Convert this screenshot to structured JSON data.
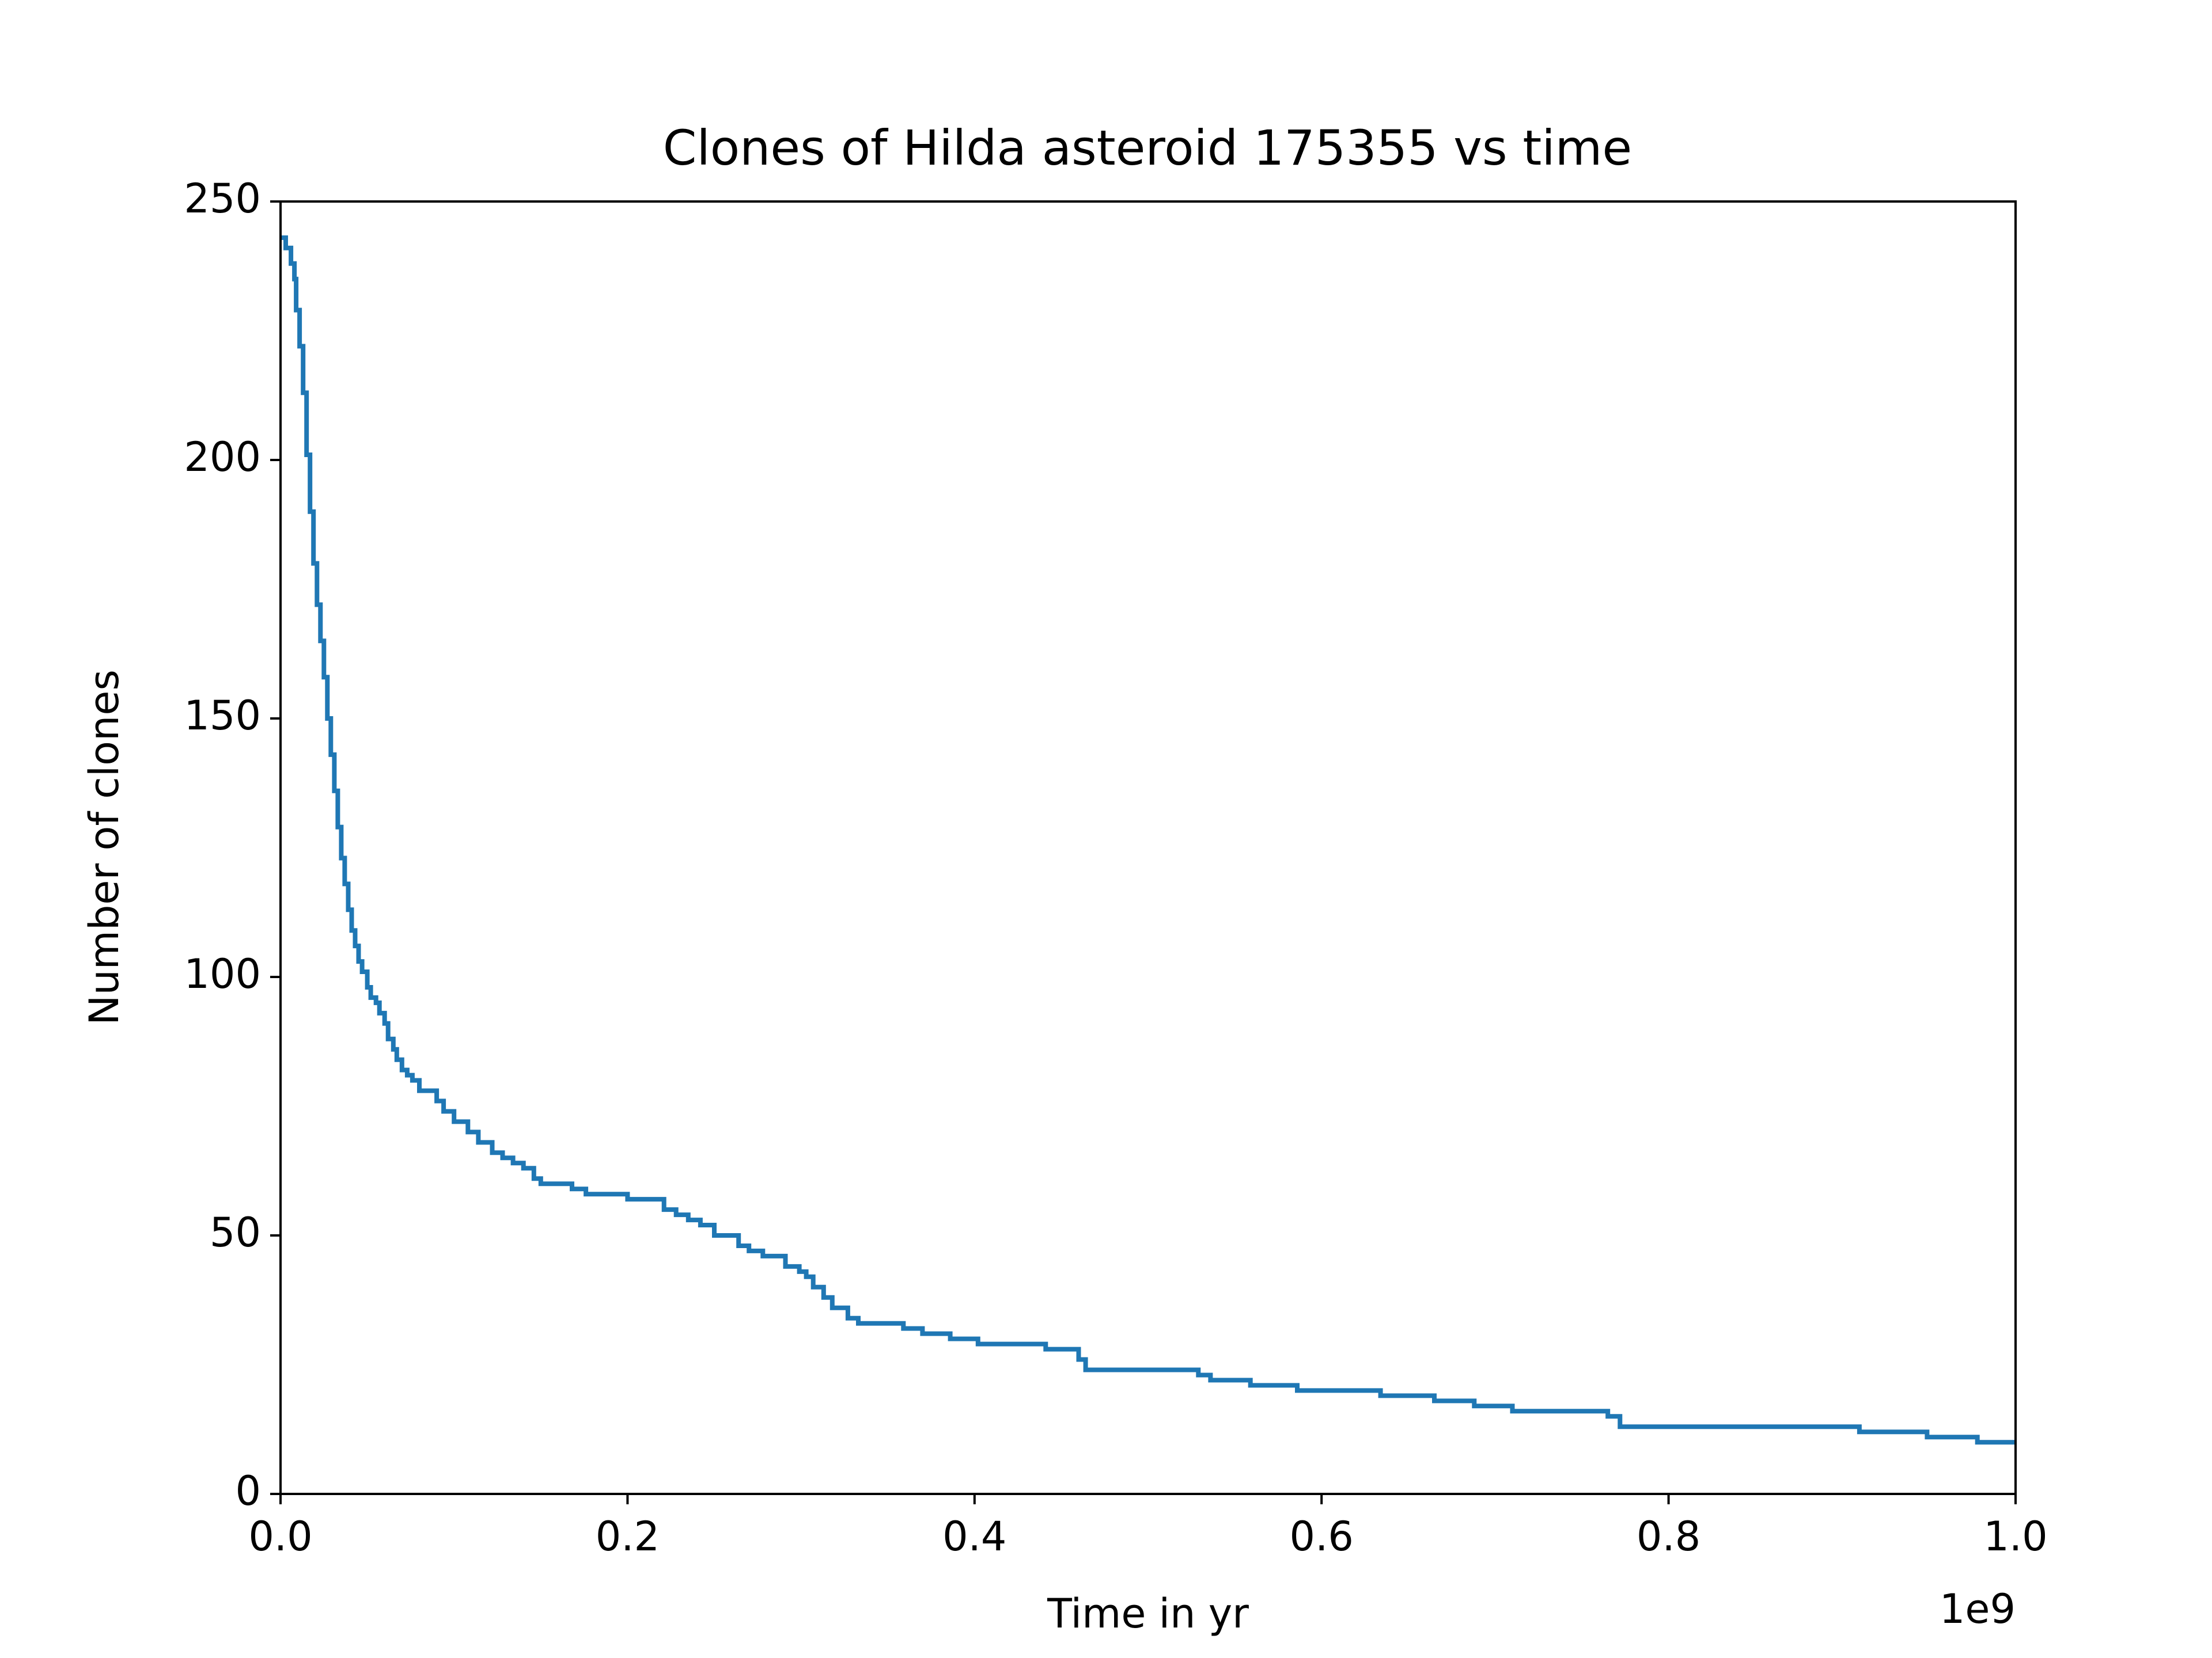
{
  "chart_data": {
    "type": "line",
    "title": "Clones of Hilda asteroid 175355 vs time",
    "xlabel": "Time in yr",
    "ylabel": "Number of clones",
    "x_offset_text": "1e9",
    "xlim": [
      0,
      1.0
    ],
    "ylim": [
      0,
      250
    ],
    "xticks": [
      0.0,
      0.2,
      0.4,
      0.6,
      0.8,
      1.0
    ],
    "xtick_labels": [
      "0.0",
      "0.2",
      "0.4",
      "0.6",
      "0.8",
      "1.0"
    ],
    "yticks": [
      0,
      50,
      100,
      150,
      200,
      250
    ],
    "ytick_labels": [
      "0",
      "50",
      "100",
      "150",
      "200",
      "250"
    ],
    "grid": false,
    "step": "post",
    "series": [
      {
        "color": "#1f77b4",
        "x": [
          0.0,
          0.003,
          0.006,
          0.008,
          0.009,
          0.011,
          0.013,
          0.015,
          0.017,
          0.019,
          0.021,
          0.023,
          0.025,
          0.027,
          0.029,
          0.031,
          0.033,
          0.035,
          0.037,
          0.039,
          0.041,
          0.043,
          0.045,
          0.047,
          0.05,
          0.052,
          0.055,
          0.057,
          0.06,
          0.062,
          0.065,
          0.067,
          0.07,
          0.073,
          0.076,
          0.08,
          0.09,
          0.094,
          0.1,
          0.108,
          0.114,
          0.122,
          0.128,
          0.134,
          0.14,
          0.146,
          0.15,
          0.168,
          0.176,
          0.2,
          0.221,
          0.228,
          0.235,
          0.242,
          0.25,
          0.264,
          0.27,
          0.278,
          0.291,
          0.299,
          0.303,
          0.307,
          0.313,
          0.318,
          0.327,
          0.333,
          0.359,
          0.37,
          0.386,
          0.402,
          0.441,
          0.46,
          0.464,
          0.529,
          0.536,
          0.559,
          0.586,
          0.634,
          0.665,
          0.688,
          0.71,
          0.765,
          0.772,
          0.91,
          0.949,
          0.978,
          1.0
        ],
        "y": [
          243,
          241,
          238,
          235,
          229,
          222,
          213,
          201,
          190,
          180,
          172,
          165,
          158,
          150,
          143,
          136,
          129,
          123,
          118,
          113,
          109,
          106,
          103,
          101,
          98,
          96,
          95,
          93,
          91,
          88,
          86,
          84,
          82,
          81,
          80,
          78,
          76,
          74,
          72,
          70,
          68,
          66,
          65,
          64,
          63,
          61,
          60,
          59,
          58,
          57,
          55,
          54,
          53,
          52,
          50,
          48,
          47,
          46,
          44,
          43,
          42,
          40,
          38,
          36,
          34,
          33,
          32,
          31,
          30,
          29,
          28,
          26,
          24,
          23,
          22,
          21,
          20,
          19,
          18,
          17,
          16,
          15,
          13,
          12,
          11,
          10,
          10
        ]
      }
    ]
  }
}
